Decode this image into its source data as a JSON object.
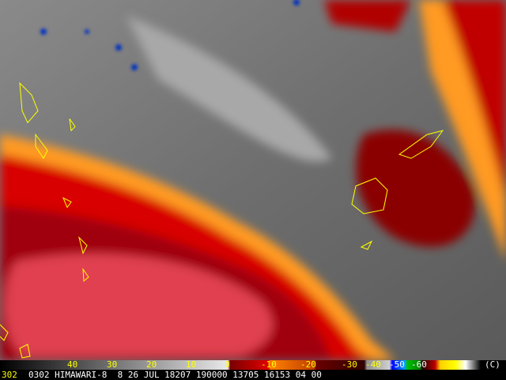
{
  "colorbar": {
    "labels": [
      "40",
      "30",
      "20",
      "10",
      "0",
      "-10",
      "-20",
      "-30",
      "-40",
      "-50",
      "-60"
    ],
    "copyright": "(C)"
  },
  "footer": {
    "station": "302",
    "text": "0302 HIMAWARI-8  8 26 JUL 18207 190000 13705 16153 04 00"
  }
}
